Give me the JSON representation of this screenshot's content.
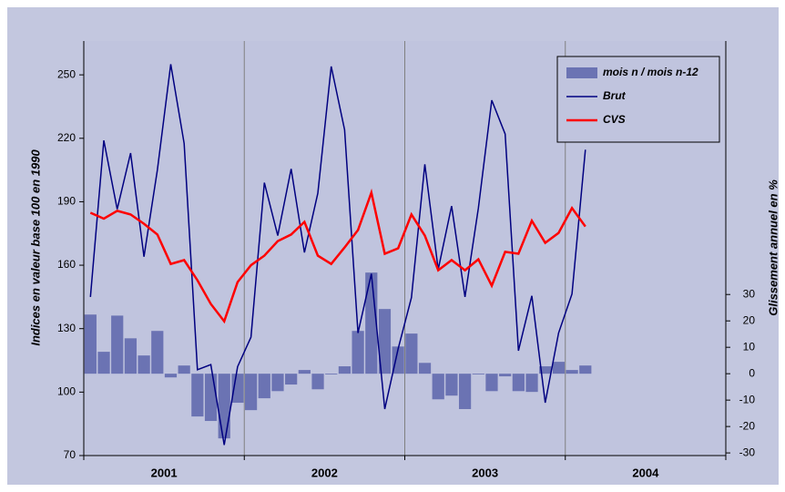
{
  "chart_data": {
    "type": "bar-line",
    "ylabel": "Indices en valeur base 100 en 1990",
    "y2label": "Glissement annuel en %",
    "years": [
      "2001",
      "2002",
      "2003",
      "2004"
    ],
    "categories": [
      null,
      null,
      null,
      null,
      null,
      null,
      null,
      null,
      null,
      null,
      null,
      null,
      null,
      null,
      null,
      null,
      null,
      null,
      null,
      null,
      null,
      null,
      null,
      null,
      null,
      null,
      null,
      null,
      null,
      null,
      null,
      null,
      null,
      null,
      null,
      null,
      null,
      null,
      null,
      null,
      null,
      null,
      null,
      null,
      null,
      null,
      null,
      null
    ],
    "ylim": [
      70,
      266
    ],
    "yticks": [
      70,
      100,
      130,
      160,
      190,
      220,
      250
    ],
    "y2lim": [
      -31,
      126
    ],
    "y2ticks": [
      -30,
      -20,
      -10,
      0,
      10,
      20,
      30
    ],
    "legend": "upper right",
    "series": [
      {
        "name": "mois n / mois n-12",
        "type": "bar",
        "axis": "y2",
        "color": "#6b73b3",
        "values": [
          22.4,
          8.3,
          22,
          13.4,
          6.9,
          16.2,
          -1.4,
          3.1,
          -16.2,
          -17.9,
          -24.5,
          -11,
          -13.8,
          -9.3,
          -6.6,
          -4.1,
          1.4,
          -5.9,
          -0.3,
          2.8,
          16.2,
          38.3,
          24.5,
          10.3,
          15.2,
          4.1,
          -9.7,
          -8.3,
          -13.4,
          -0.3,
          -6.6,
          -1,
          -6.6,
          -6.9,
          2.8,
          4.5,
          1.4,
          3.1,
          null,
          null,
          null,
          null,
          null,
          null,
          null,
          null,
          null,
          null
        ]
      },
      {
        "name": "Brut",
        "type": "line",
        "color": "#000080",
        "values": [
          145,
          219,
          186.5,
          213,
          164,
          205,
          255,
          217.6,
          110.6,
          113,
          75,
          112,
          126,
          199,
          174,
          205.5,
          166,
          194,
          254,
          224,
          128,
          156,
          92,
          120.5,
          144.7,
          207.7,
          158,
          188,
          145,
          187,
          238,
          222,
          119.6,
          145.5,
          95,
          128,
          146.4,
          214.6,
          null,
          null,
          null,
          null,
          null,
          null,
          null,
          null,
          null,
          null
        ]
      },
      {
        "name": "CVS",
        "type": "line",
        "color": "#ff0000",
        "values": [
          184.8,
          182,
          185.7,
          184,
          179.6,
          174.5,
          160.6,
          162.4,
          152.9,
          141.7,
          133.5,
          152,
          160,
          164.5,
          171.4,
          174.5,
          180.5,
          164.5,
          160.6,
          168.4,
          176.6,
          194.3,
          165.4,
          168,
          184,
          174,
          157.6,
          162.4,
          157.6,
          162.8,
          150.3,
          166.3,
          165.4,
          181,
          170.6,
          175.3,
          187,
          178.3,
          null,
          null,
          null,
          null,
          null,
          null,
          null,
          null,
          null,
          null
        ]
      }
    ]
  }
}
